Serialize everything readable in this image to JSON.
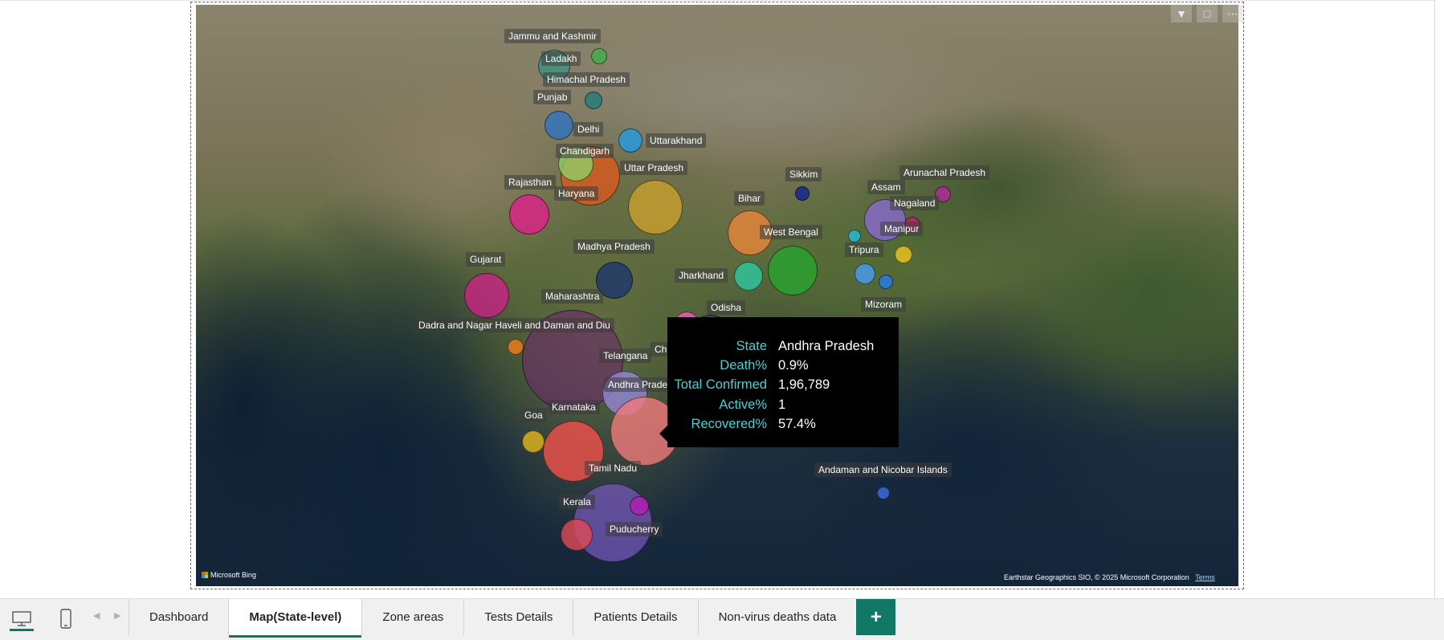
{
  "map": {
    "provider": "Microsoft Bing",
    "attribution": "Earthstar Geographics SIO, © 2025 Microsoft Corporation",
    "terms_link": "Terms",
    "states": [
      {
        "name": "Jammu and Kashmir",
        "color": "#3fb04a"
      },
      {
        "name": "Ladakh",
        "color": "#1f9a8a"
      },
      {
        "name": "Himachal Pradesh",
        "color": "#1f7a7a"
      },
      {
        "name": "Punjab",
        "color": "#2a73c8"
      },
      {
        "name": "Delhi",
        "color": "#e8b530"
      },
      {
        "name": "Uttarakhand",
        "color": "#2a9ad8"
      },
      {
        "name": "Chandigarh",
        "color": "#8bd66a"
      },
      {
        "name": "Uttar Pradesh",
        "color": "#c9a02e"
      },
      {
        "name": "Haryana",
        "color": "#e05a1a"
      },
      {
        "name": "Rajasthan",
        "color": "#e0208a"
      },
      {
        "name": "Bihar",
        "color": "#f08a3a"
      },
      {
        "name": "Sikkim",
        "color": "#1a2a8a"
      },
      {
        "name": "Assam",
        "color": "#8a6ad0"
      },
      {
        "name": "Arunachal Pradesh",
        "color": "#b02a9a"
      },
      {
        "name": "Nagaland",
        "color": "#c0206a"
      },
      {
        "name": "Manipur",
        "color": "#e8c020"
      },
      {
        "name": "West Bengal",
        "color": "#2aa030"
      },
      {
        "name": "Tripura",
        "color": "#4a9ae8"
      },
      {
        "name": "Mizoram",
        "color": "#2a7ae0"
      },
      {
        "name": "Madhya Pradesh",
        "color": "#1e3a6a"
      },
      {
        "name": "Jharkhand",
        "color": "#30c8a0"
      },
      {
        "name": "Gujarat",
        "color": "#d0208a"
      },
      {
        "name": "Maharashtra",
        "color": "#6a2a6a"
      },
      {
        "name": "Odisha",
        "color": "#e060b0"
      },
      {
        "name": "Dadra and Nagar Haveli and Daman and Diu",
        "color": "#e87a20"
      },
      {
        "name": "Chhattisgarh",
        "color": "#3a2a5a"
      },
      {
        "name": "Telangana",
        "color": "#9a8ae0"
      },
      {
        "name": "Andhra Pradesh",
        "color": "#f07a7a"
      },
      {
        "name": "Karnataka",
        "color": "#e8504a"
      },
      {
        "name": "Goa",
        "color": "#d8b020"
      },
      {
        "name": "Tamil Nadu",
        "color": "#7a5ac0"
      },
      {
        "name": "Kerala",
        "color": "#e04a5a"
      },
      {
        "name": "Puducherry",
        "color": "#b020b0"
      },
      {
        "name": "Andaman and Nicobar Islands",
        "color": "#3a6ad8"
      }
    ]
  },
  "tooltip": {
    "rows": [
      {
        "key": "State",
        "value": "Andhra Pradesh"
      },
      {
        "key": "Death%",
        "value": "0.9%"
      },
      {
        "key": "Total Confirmed",
        "value": "1,96,789"
      },
      {
        "key": "Active%",
        "value": "1"
      },
      {
        "key": "Recovered%",
        "value": "57.4%"
      }
    ]
  },
  "visual_header": {
    "icons": [
      "filter-icon",
      "focus-mode-icon",
      "more-options-icon"
    ]
  },
  "tabs": [
    {
      "label": "Dashboard"
    },
    {
      "label": "Map(State-level)",
      "active": true
    },
    {
      "label": "Zone areas"
    },
    {
      "label": "Tests Details"
    },
    {
      "label": "Patients Details"
    },
    {
      "label": "Non-virus deaths data"
    }
  ],
  "add_tab_label": "+",
  "accent_color": "#117865"
}
